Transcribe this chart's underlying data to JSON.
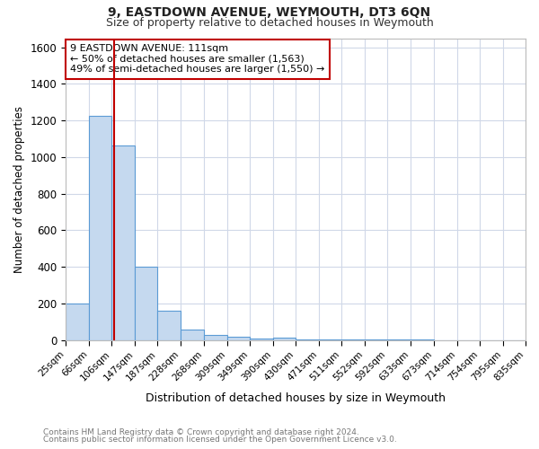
{
  "title": "9, EASTDOWN AVENUE, WEYMOUTH, DT3 6QN",
  "subtitle": "Size of property relative to detached houses in Weymouth",
  "xlabel": "Distribution of detached houses by size in Weymouth",
  "ylabel": "Number of detached properties",
  "footnote1": "Contains HM Land Registry data © Crown copyright and database right 2024.",
  "footnote2": "Contains public sector information licensed under the Open Government Licence v3.0.",
  "annotation_line1": "9 EASTDOWN AVENUE: 111sqm",
  "annotation_line2": "← 50% of detached houses are smaller (1,563)",
  "annotation_line3": "49% of semi-detached houses are larger (1,550) →",
  "bar_edges": [
    25,
    66,
    106,
    147,
    187,
    228,
    268,
    309,
    349,
    390,
    430,
    471,
    511,
    552,
    592,
    633,
    673,
    714,
    754,
    795,
    835
  ],
  "bar_heights": [
    197,
    1224,
    1063,
    399,
    162,
    55,
    30,
    18,
    10,
    12,
    4,
    5,
    3,
    1,
    2,
    1,
    0,
    0,
    0,
    0
  ],
  "property_line_x": 111,
  "bar_color": "#c5d9ef",
  "bar_edge_color": "#5b9bd5",
  "property_line_color": "#c00000",
  "annotation_box_edge_color": "#c00000",
  "annotation_box_face_color": "#ffffff",
  "background_color": "#ffffff",
  "grid_color": "#d0d8e8",
  "ylim": [
    0,
    1650
  ],
  "yticks": [
    0,
    200,
    400,
    600,
    800,
    1000,
    1200,
    1400,
    1600
  ],
  "title_fontsize": 10,
  "subtitle_fontsize": 9
}
